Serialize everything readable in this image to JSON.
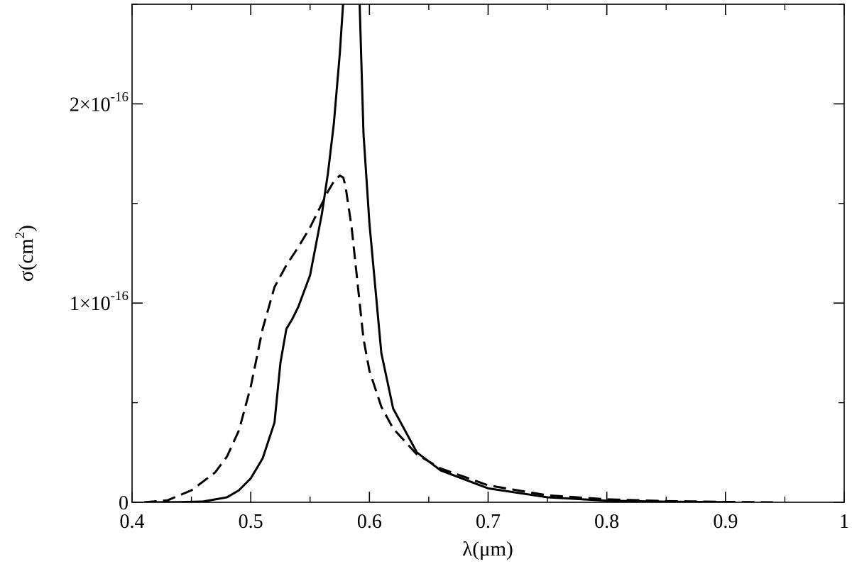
{
  "chart_data": {
    "type": "line",
    "xlabel": "λ(μm)",
    "ylabel": "σ(cm",
    "ylabel_sup": "2",
    "ylabel_close": ")",
    "xlim": [
      0.4,
      1.0
    ],
    "ylim": [
      0,
      2.5e-16
    ],
    "grid": false,
    "x_ticks": [
      0.4,
      0.5,
      0.6,
      0.7,
      0.8,
      0.9,
      1.0
    ],
    "x_tick_labels": [
      "0.4",
      "0.5",
      "0.6",
      "0.7",
      "0.8",
      "0.9",
      "1"
    ],
    "y_ticks": [
      {
        "value": 0,
        "mantissa": "0",
        "exponent": ""
      },
      {
        "value": 1e-16,
        "mantissa": "1×10",
        "exponent": "-16"
      },
      {
        "value": 2e-16,
        "mantissa": "2×10",
        "exponent": "-16"
      }
    ],
    "series": [
      {
        "style": "solid",
        "color": "#000000",
        "x": [
          0.41,
          0.44,
          0.46,
          0.48,
          0.49,
          0.5,
          0.51,
          0.52,
          0.525,
          0.53,
          0.535,
          0.54,
          0.55,
          0.56,
          0.565,
          0.57,
          0.575,
          0.578,
          0.58,
          0.582,
          0.585,
          0.59,
          0.592,
          0.595,
          0.6,
          0.61,
          0.62,
          0.64,
          0.66,
          0.7,
          0.75,
          0.8,
          0.85,
          0.9
        ],
        "y": [
          0,
          1e-19,
          4e-19,
          2.5e-18,
          6e-18,
          1.2e-17,
          2.2e-17,
          4e-17,
          7e-17,
          8.7e-17,
          9.2e-17,
          9.8e-17,
          1.14e-16,
          1.45e-16,
          1.65e-16,
          1.9e-16,
          2.25e-16,
          2.52e-16,
          2.8e-16,
          3e-16,
          3e-16,
          2.9e-16,
          2.45e-16,
          1.85e-16,
          1.4e-16,
          7.5e-17,
          4.7e-17,
          2.5e-17,
          1.6e-17,
          7e-18,
          2.5e-18,
          8e-19,
          3e-19,
          1e-19
        ]
      },
      {
        "style": "dashed",
        "color": "#000000",
        "x": [
          0.41,
          0.43,
          0.45,
          0.47,
          0.48,
          0.49,
          0.5,
          0.51,
          0.52,
          0.53,
          0.54,
          0.55,
          0.56,
          0.565,
          0.57,
          0.575,
          0.578,
          0.58,
          0.585,
          0.59,
          0.595,
          0.6,
          0.61,
          0.62,
          0.64,
          0.66,
          0.7,
          0.75,
          0.8,
          0.85,
          0.9,
          0.94
        ],
        "y": [
          0,
          1e-18,
          6e-18,
          1.5e-17,
          2.3e-17,
          3.6e-17,
          5.8e-17,
          8.7e-17,
          1.08e-16,
          1.19e-16,
          1.28e-16,
          1.38e-16,
          1.5e-16,
          1.56e-16,
          1.61e-16,
          1.64e-16,
          1.63e-16,
          1.58e-16,
          1.38e-16,
          1.1e-16,
          8.2e-17,
          6.6e-17,
          4.8e-17,
          3.7e-17,
          2.4e-17,
          1.7e-17,
          8.5e-18,
          3.5e-18,
          1.5e-18,
          6e-19,
          2e-19,
          0
        ]
      }
    ]
  }
}
